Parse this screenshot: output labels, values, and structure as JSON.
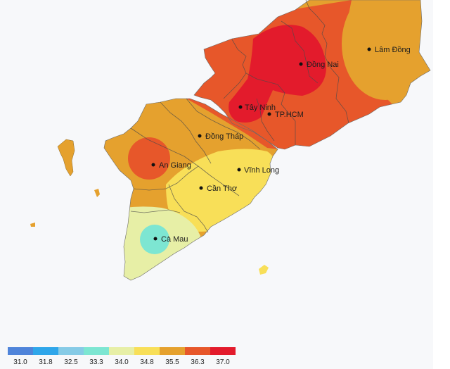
{
  "map": {
    "type": "temperature-heatmap",
    "cities": [
      {
        "id": "lam-dong",
        "name": "Lâm Đồng"
      },
      {
        "id": "dong-nai",
        "name": "Đồng Nai"
      },
      {
        "id": "tay-ninh",
        "name": "Tây Ninh"
      },
      {
        "id": "tphcm",
        "name": "TP.HCM"
      },
      {
        "id": "dong-thap",
        "name": "Đồng Tháp"
      },
      {
        "id": "an-giang",
        "name": "An Giang"
      },
      {
        "id": "vinh-long",
        "name": "Vĩnh Long"
      },
      {
        "id": "can-tho",
        "name": "Cần Thơ"
      },
      {
        "id": "ca-mau",
        "name": "Cà Mau"
      }
    ]
  },
  "legend": {
    "ticks": [
      "31.0",
      "31.8",
      "32.5",
      "33.3",
      "34.0",
      "34.8",
      "35.5",
      "36.3",
      "37.0"
    ],
    "colors": [
      "#4f84da",
      "#2fa6ea",
      "#86cbe6",
      "#7de6d2",
      "#e7efa6",
      "#f8df58",
      "#e5a12e",
      "#e7572a",
      "#e31b2c"
    ]
  },
  "colors": {
    "background": "#f7f8fa",
    "border": "#4a4a4a"
  }
}
